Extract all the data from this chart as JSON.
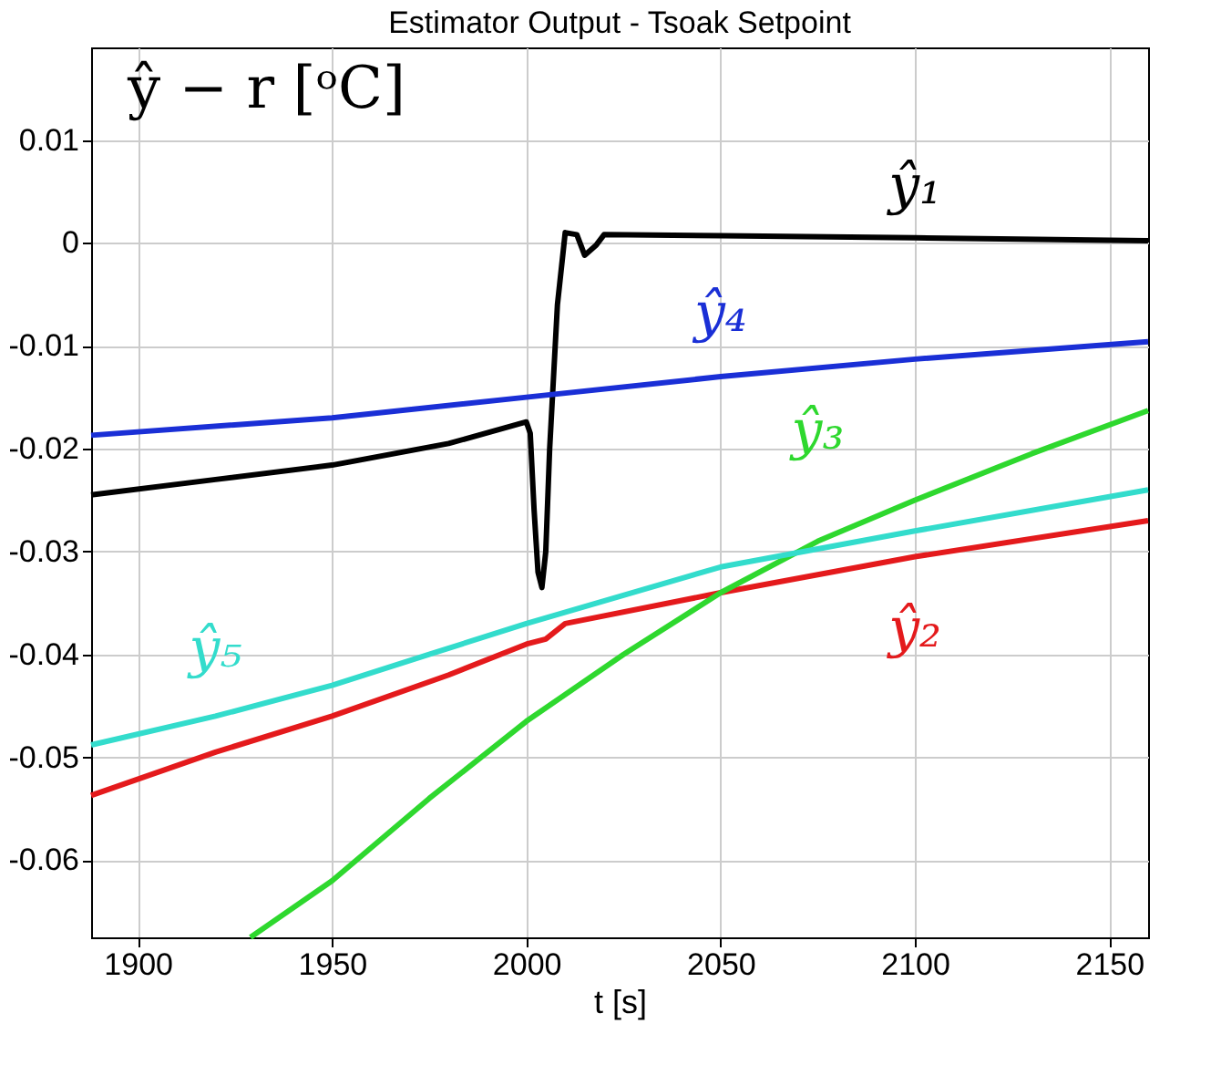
{
  "chart_data": {
    "type": "line",
    "title": "Estimator Output - Tsoak Setpoint",
    "xlabel": "t [s]",
    "xlim": [
      1888,
      2160
    ],
    "xticks": [
      1900,
      1950,
      2000,
      2050,
      2100,
      2150
    ],
    "ylim": [
      -0.0675,
      0.019
    ],
    "yticks": [
      0.01,
      0,
      -0.01,
      -0.02,
      -0.03,
      -0.04,
      -0.05,
      -0.06
    ],
    "grid": true,
    "legend": false,
    "marker": "none",
    "line_style": "solid",
    "series": [
      {
        "name": "ŷ₁",
        "color": "#000000",
        "x": [
          1888,
          1920,
          1950,
          1980,
          2000,
          2001,
          2002,
          2003,
          2004,
          2005,
          2006,
          2008,
          2010,
          2013,
          2015,
          2018,
          2020,
          2050,
          2100,
          2160
        ],
        "values": [
          -0.0245,
          -0.023,
          -0.0216,
          -0.0195,
          -0.0174,
          -0.0185,
          -0.026,
          -0.032,
          -0.0335,
          -0.03,
          -0.02,
          -0.006,
          0.001,
          0.0008,
          -0.0012,
          -0.0002,
          0.0008,
          0.0007,
          0.0005,
          0.0002
        ]
      },
      {
        "name": "ŷ₂",
        "color": "#e41a1c",
        "x": [
          1888,
          1920,
          1950,
          1980,
          2000,
          2005,
          2010,
          2050,
          2100,
          2160
        ],
        "values": [
          -0.0537,
          -0.0495,
          -0.046,
          -0.042,
          -0.039,
          -0.0385,
          -0.037,
          -0.034,
          -0.0305,
          -0.027
        ]
      },
      {
        "name": "ŷ₃",
        "color": "#2ed82e",
        "x": [
          1929,
          1950,
          1975,
          2000,
          2025,
          2050,
          2075,
          2100,
          2130,
          2160
        ],
        "values": [
          -0.0675,
          -0.062,
          -0.054,
          -0.0465,
          -0.04,
          -0.034,
          -0.029,
          -0.025,
          -0.0205,
          -0.0163
        ]
      },
      {
        "name": "ŷ₄",
        "color": "#1a2fd6",
        "x": [
          1888,
          1950,
          2000,
          2050,
          2100,
          2160
        ],
        "values": [
          -0.0187,
          -0.017,
          -0.015,
          -0.013,
          -0.0113,
          -0.0096
        ]
      },
      {
        "name": "ŷ₅",
        "color": "#33dccc",
        "x": [
          1888,
          1920,
          1950,
          1975,
          2000,
          2050,
          2100,
          2160
        ],
        "values": [
          -0.0488,
          -0.046,
          -0.043,
          -0.04,
          -0.037,
          -0.0315,
          -0.028,
          -0.024
        ]
      }
    ],
    "annotations": [
      "ŷ − r   [ᵒC]"
    ]
  }
}
